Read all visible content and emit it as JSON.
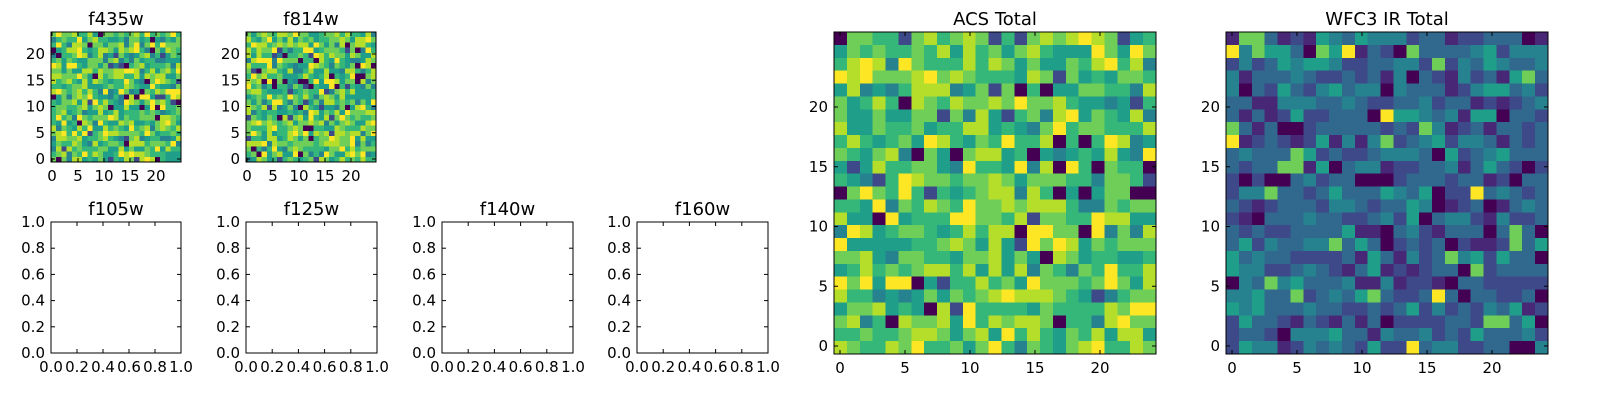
{
  "chart_data": [
    {
      "type": "heatmap",
      "title": "f435w",
      "xticks": [
        "0",
        "5",
        "10",
        "15",
        "20"
      ],
      "yticks": [
        "0",
        "5",
        "10",
        "15",
        "20"
      ],
      "xlim": [
        0,
        25
      ],
      "ylim": [
        0,
        25
      ],
      "grid": false,
      "colormap": "viridis"
    },
    {
      "type": "heatmap",
      "title": "f814w",
      "xticks": [
        "0",
        "5",
        "10",
        "15",
        "20"
      ],
      "yticks": [
        "0",
        "5",
        "10",
        "15",
        "20"
      ],
      "xlim": [
        0,
        25
      ],
      "ylim": [
        0,
        25
      ],
      "grid": false,
      "colormap": "viridis"
    },
    {
      "type": "heatmap",
      "title": "f105w",
      "xticks": [
        "0.0",
        "0.2",
        "0.4",
        "0.6",
        "0.8",
        "1.0"
      ],
      "yticks": [
        "0.0",
        "0.2",
        "0.4",
        "0.6",
        "0.8",
        "1.0"
      ],
      "xlim": [
        0,
        1
      ],
      "ylim": [
        0,
        1
      ],
      "grid": false,
      "empty": true
    },
    {
      "type": "heatmap",
      "title": "f125w",
      "xticks": [
        "0.0",
        "0.2",
        "0.4",
        "0.6",
        "0.8",
        "1.0"
      ],
      "yticks": [
        "0.0",
        "0.2",
        "0.4",
        "0.6",
        "0.8",
        "1.0"
      ],
      "xlim": [
        0,
        1
      ],
      "ylim": [
        0,
        1
      ],
      "grid": false,
      "empty": true
    },
    {
      "type": "heatmap",
      "title": "f140w",
      "xticks": [
        "0.0",
        "0.2",
        "0.4",
        "0.6",
        "0.8",
        "1.0"
      ],
      "yticks": [
        "0.0",
        "0.2",
        "0.4",
        "0.6",
        "0.8",
        "1.0"
      ],
      "xlim": [
        0,
        1
      ],
      "ylim": [
        0,
        1
      ],
      "grid": false,
      "empty": true
    },
    {
      "type": "heatmap",
      "title": "f160w",
      "xticks": [
        "0.0",
        "0.2",
        "0.4",
        "0.6",
        "0.8",
        "1.0"
      ],
      "yticks": [
        "0.0",
        "0.2",
        "0.4",
        "0.6",
        "0.8",
        "1.0"
      ],
      "xlim": [
        0,
        1
      ],
      "ylim": [
        0,
        1
      ],
      "grid": false,
      "empty": true
    },
    {
      "type": "heatmap",
      "title": "ACS Total",
      "xticks": [
        "0",
        "5",
        "10",
        "15",
        "20"
      ],
      "yticks": [
        "0",
        "5",
        "10",
        "15",
        "20"
      ],
      "xlim": [
        0,
        25
      ],
      "ylim": [
        0,
        25
      ],
      "grid": false,
      "colormap": "viridis"
    },
    {
      "type": "heatmap",
      "title": "WFC3 IR Total",
      "xticks": [
        "0",
        "5",
        "10",
        "15",
        "20"
      ],
      "yticks": [
        "0",
        "5",
        "10",
        "15",
        "20"
      ],
      "xlim": [
        0,
        25
      ],
      "ylim": [
        0,
        25
      ],
      "grid": false,
      "colormap": "viridis"
    }
  ]
}
